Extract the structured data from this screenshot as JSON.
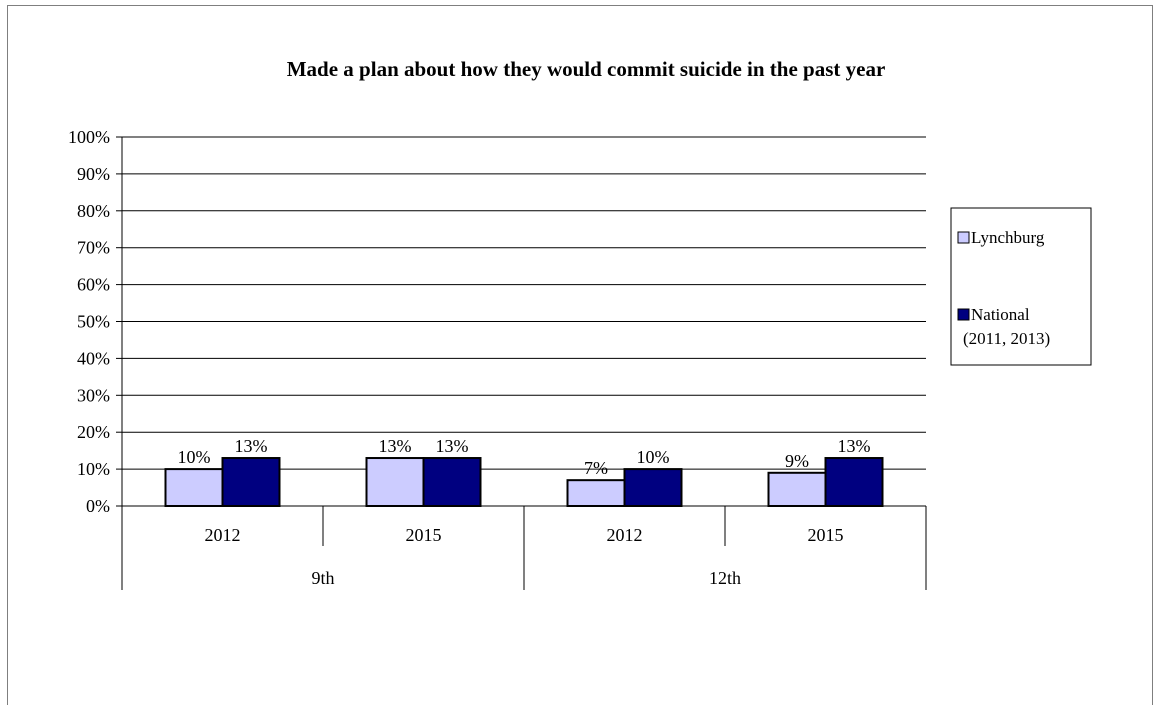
{
  "chart_data": {
    "type": "bar",
    "title": "Made a plan about how they would commit suicide in the past year",
    "xlabel": "",
    "ylabel": "",
    "ylim": [
      0,
      100
    ],
    "y_ticks": [
      "0%",
      "10%",
      "20%",
      "30%",
      "40%",
      "50%",
      "60%",
      "70%",
      "80%",
      "90%",
      "100%"
    ],
    "grid": true,
    "legend_position": "right",
    "groups": [
      {
        "label": "9th",
        "categories": [
          "2012",
          "2015"
        ]
      },
      {
        "label": "12th",
        "categories": [
          "2012",
          "2015"
        ]
      }
    ],
    "categories": [
      "2012",
      "2015",
      "2012",
      "2015"
    ],
    "series": [
      {
        "name": "Lynchburg",
        "color": "#ccccff",
        "values": [
          10,
          13,
          7,
          9
        ],
        "labels": [
          "10%",
          "13%",
          "7%",
          "9%"
        ]
      },
      {
        "name": "National",
        "name_line2": "(2011, 2013)",
        "color": "#000080",
        "values": [
          13,
          13,
          10,
          13
        ],
        "labels": [
          "13%",
          "13%",
          "10%",
          "13%"
        ]
      }
    ]
  }
}
